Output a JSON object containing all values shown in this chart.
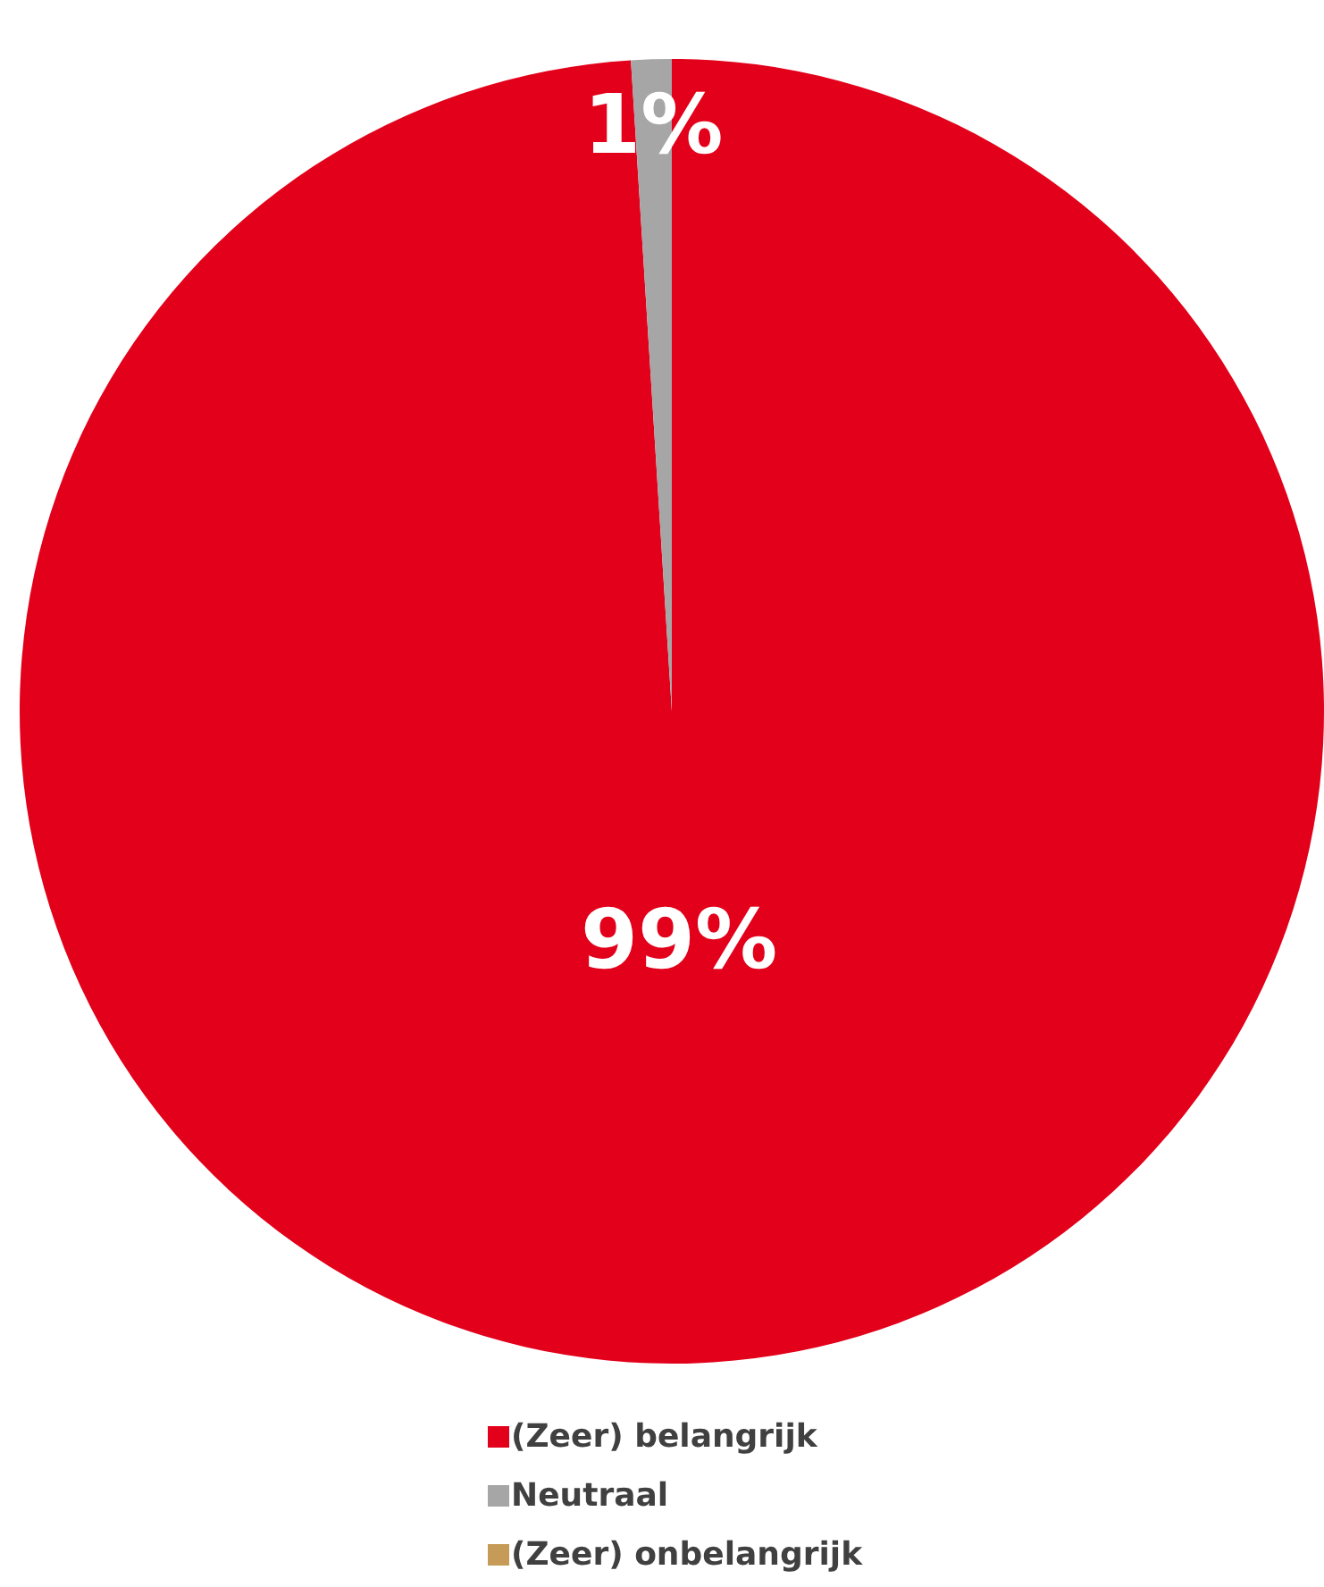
{
  "chart_data": {
    "type": "pie",
    "categories": [
      "(Zeer) belangrijk",
      "Neutraal",
      "(Zeer) onbelangrijk"
    ],
    "values": [
      99,
      1,
      0
    ],
    "colors": [
      "#e2001a",
      "#a6a6a6",
      "#c59b57"
    ],
    "value_labels": [
      "99%",
      "1%",
      null
    ],
    "legend": "bottom"
  }
}
